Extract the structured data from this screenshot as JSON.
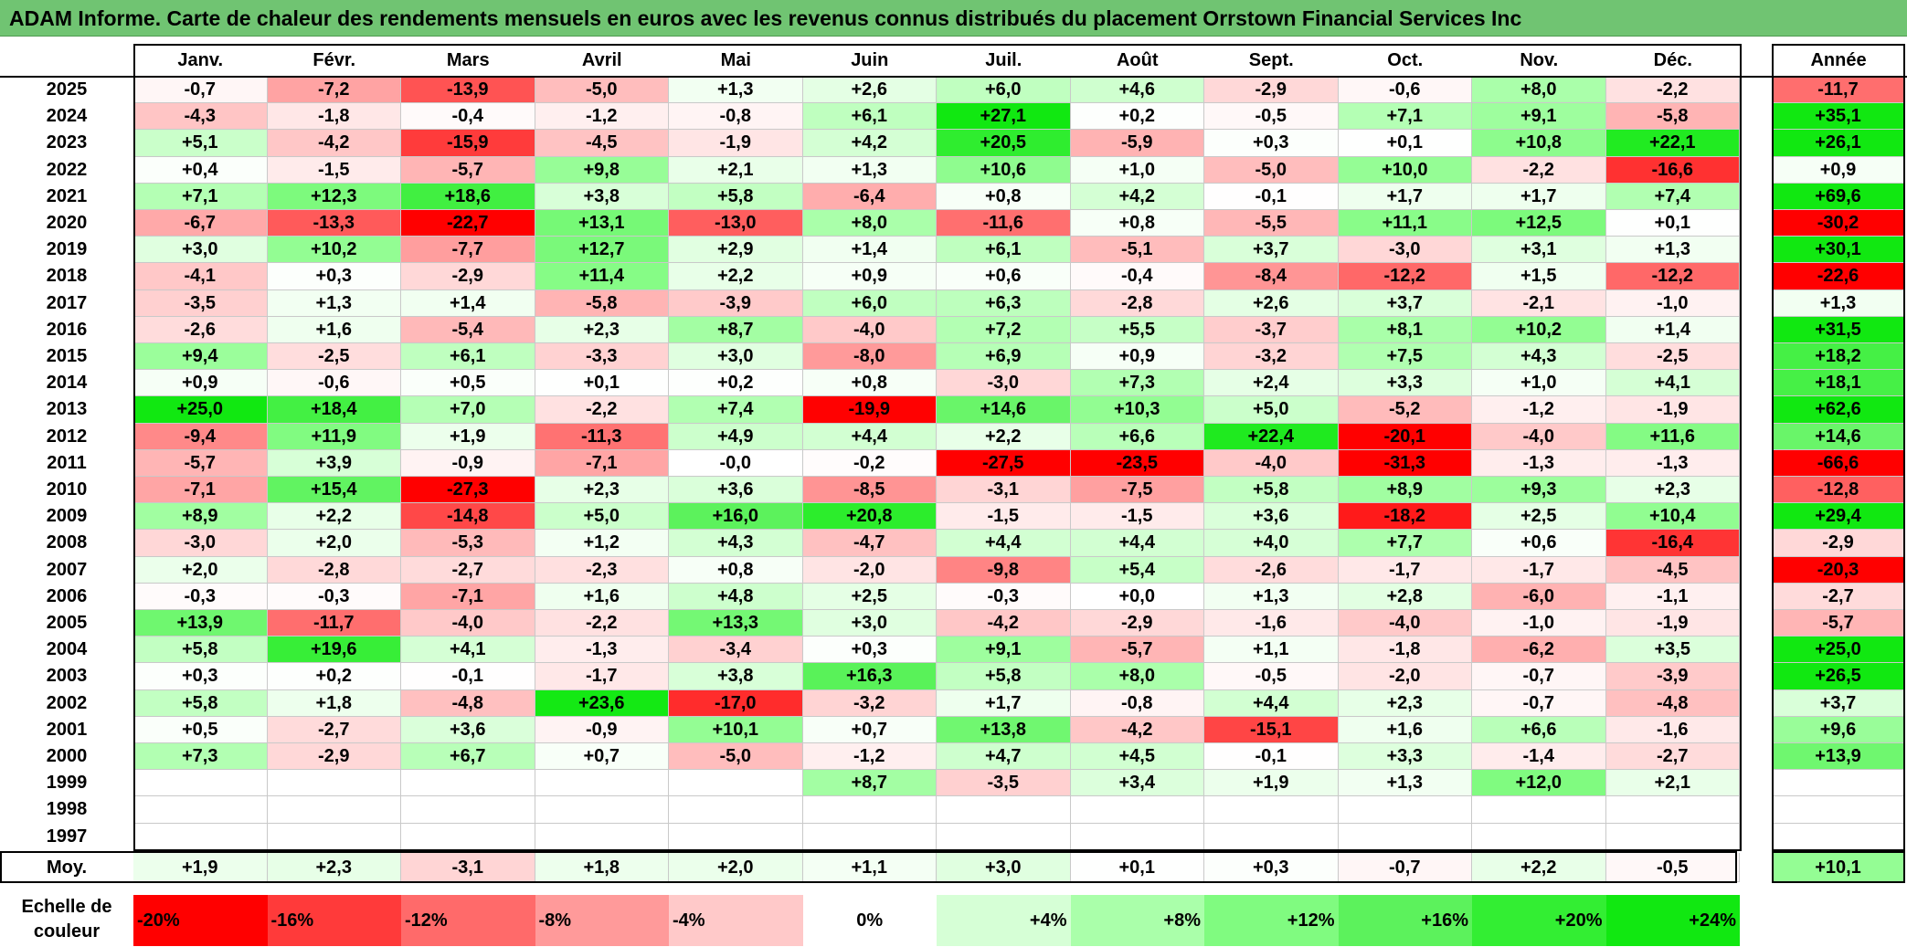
{
  "title": "ADAM Informe. Carte de chaleur des rendements mensuels en euros avec les revenus connus distribués du placement Orrstown Financial Services Inc",
  "chart_data": {
    "type": "heatmap",
    "columns": [
      "Janv.",
      "Févr.",
      "Mars",
      "Avril",
      "Mai",
      "Juin",
      "Juil.",
      "Août",
      "Sept.",
      "Oct.",
      "Nov.",
      "Déc."
    ],
    "annual_label": "Année",
    "average_label": "Moy.",
    "rows": [
      {
        "year": "2025",
        "months": [
          "-0,7",
          "-7,2",
          "-13,9",
          "-5,0",
          "+1,3",
          "+2,6",
          "+6,0",
          "+4,6",
          "-2,9",
          "-0,6",
          "+8,0",
          "-2,2"
        ],
        "annual": "-11,7"
      },
      {
        "year": "2024",
        "months": [
          "-4,3",
          "-1,8",
          "-0,4",
          "-1,2",
          "-0,8",
          "+6,1",
          "+27,1",
          "+0,2",
          "-0,5",
          "+7,1",
          "+9,1",
          "-5,8"
        ],
        "annual": "+35,1"
      },
      {
        "year": "2023",
        "months": [
          "+5,1",
          "-4,2",
          "-15,9",
          "-4,5",
          "-1,9",
          "+4,2",
          "+20,5",
          "-5,9",
          "+0,3",
          "+0,1",
          "+10,8",
          "+22,1"
        ],
        "annual": "+26,1"
      },
      {
        "year": "2022",
        "months": [
          "+0,4",
          "-1,5",
          "-5,7",
          "+9,8",
          "+2,1",
          "+1,3",
          "+10,6",
          "+1,0",
          "-5,0",
          "+10,0",
          "-2,2",
          "-16,6"
        ],
        "annual": "+0,9"
      },
      {
        "year": "2021",
        "months": [
          "+7,1",
          "+12,3",
          "+18,6",
          "+3,8",
          "+5,8",
          "-6,4",
          "+0,8",
          "+4,2",
          "-0,1",
          "+1,7",
          "+1,7",
          "+7,4"
        ],
        "annual": "+69,6"
      },
      {
        "year": "2020",
        "months": [
          "-6,7",
          "-13,3",
          "-22,7",
          "+13,1",
          "-13,0",
          "+8,0",
          "-11,6",
          "+0,8",
          "-5,5",
          "+11,1",
          "+12,5",
          "+0,1"
        ],
        "annual": "-30,2"
      },
      {
        "year": "2019",
        "months": [
          "+3,0",
          "+10,2",
          "-7,7",
          "+12,7",
          "+2,9",
          "+1,4",
          "+6,1",
          "-5,1",
          "+3,7",
          "-3,0",
          "+3,1",
          "+1,3"
        ],
        "annual": "+30,1"
      },
      {
        "year": "2018",
        "months": [
          "-4,1",
          "+0,3",
          "-2,9",
          "+11,4",
          "+2,2",
          "+0,9",
          "+0,6",
          "-0,4",
          "-8,4",
          "-12,2",
          "+1,5",
          "-12,2"
        ],
        "annual": "-22,6"
      },
      {
        "year": "2017",
        "months": [
          "-3,5",
          "+1,3",
          "+1,4",
          "-5,8",
          "-3,9",
          "+6,0",
          "+6,3",
          "-2,8",
          "+2,6",
          "+3,7",
          "-2,1",
          "-1,0"
        ],
        "annual": "+1,3"
      },
      {
        "year": "2016",
        "months": [
          "-2,6",
          "+1,6",
          "-5,4",
          "+2,3",
          "+8,7",
          "-4,0",
          "+7,2",
          "+5,5",
          "-3,7",
          "+8,1",
          "+10,2",
          "+1,4"
        ],
        "annual": "+31,5"
      },
      {
        "year": "2015",
        "months": [
          "+9,4",
          "-2,5",
          "+6,1",
          "-3,3",
          "+3,0",
          "-8,0",
          "+6,9",
          "+0,9",
          "-3,2",
          "+7,5",
          "+4,3",
          "-2,5"
        ],
        "annual": "+18,2"
      },
      {
        "year": "2014",
        "months": [
          "+0,9",
          "-0,6",
          "+0,5",
          "+0,1",
          "+0,2",
          "+0,8",
          "-3,0",
          "+7,3",
          "+2,4",
          "+3,3",
          "+1,0",
          "+4,1"
        ],
        "annual": "+18,1"
      },
      {
        "year": "2013",
        "months": [
          "+25,0",
          "+18,4",
          "+7,0",
          "-2,2",
          "+7,4",
          "-19,9",
          "+14,6",
          "+10,3",
          "+5,0",
          "-5,2",
          "-1,2",
          "-1,9"
        ],
        "annual": "+62,6"
      },
      {
        "year": "2012",
        "months": [
          "-9,4",
          "+11,9",
          "+1,9",
          "-11,3",
          "+4,9",
          "+4,4",
          "+2,2",
          "+6,6",
          "+22,4",
          "-20,1",
          "-4,0",
          "+11,6"
        ],
        "annual": "+14,6"
      },
      {
        "year": "2011",
        "months": [
          "-5,7",
          "+3,9",
          "-0,9",
          "-7,1",
          "-0,0",
          "-0,2",
          "-27,5",
          "-23,5",
          "-4,0",
          "-31,3",
          "-1,3",
          "-1,3"
        ],
        "annual": "-66,6"
      },
      {
        "year": "2010",
        "months": [
          "-7,1",
          "+15,4",
          "-27,3",
          "+2,3",
          "+3,6",
          "-8,5",
          "-3,1",
          "-7,5",
          "+5,8",
          "+8,9",
          "+9,3",
          "+2,3"
        ],
        "annual": "-12,8"
      },
      {
        "year": "2009",
        "months": [
          "+8,9",
          "+2,2",
          "-14,8",
          "+5,0",
          "+16,0",
          "+20,8",
          "-1,5",
          "-1,5",
          "+3,6",
          "-18,2",
          "+2,5",
          "+10,4"
        ],
        "annual": "+29,4"
      },
      {
        "year": "2008",
        "months": [
          "-3,0",
          "+2,0",
          "-5,3",
          "+1,2",
          "+4,3",
          "-4,7",
          "+4,4",
          "+4,4",
          "+4,0",
          "+7,7",
          "+0,6",
          "-16,4"
        ],
        "annual": "-2,9"
      },
      {
        "year": "2007",
        "months": [
          "+2,0",
          "-2,8",
          "-2,7",
          "-2,3",
          "+0,8",
          "-2,0",
          "-9,8",
          "+5,4",
          "-2,6",
          "-1,7",
          "-1,7",
          "-4,5"
        ],
        "annual": "-20,3"
      },
      {
        "year": "2006",
        "months": [
          "-0,3",
          "-0,3",
          "-7,1",
          "+1,6",
          "+4,8",
          "+2,5",
          "-0,3",
          "+0,0",
          "+1,3",
          "+2,8",
          "-6,0",
          "-1,1"
        ],
        "annual": "-2,7"
      },
      {
        "year": "2005",
        "months": [
          "+13,9",
          "-11,7",
          "-4,0",
          "-2,2",
          "+13,3",
          "+3,0",
          "-4,2",
          "-2,9",
          "-1,6",
          "-4,0",
          "-1,0",
          "-1,9"
        ],
        "annual": "-5,7"
      },
      {
        "year": "2004",
        "months": [
          "+5,8",
          "+19,6",
          "+4,1",
          "-1,3",
          "-3,4",
          "+0,3",
          "+9,1",
          "-5,7",
          "+1,1",
          "-1,8",
          "-6,2",
          "+3,5"
        ],
        "annual": "+25,0"
      },
      {
        "year": "2003",
        "months": [
          "+0,3",
          "+0,2",
          "-0,1",
          "-1,7",
          "+3,8",
          "+16,3",
          "+5,8",
          "+8,0",
          "-0,5",
          "-2,0",
          "-0,7",
          "-3,9"
        ],
        "annual": "+26,5"
      },
      {
        "year": "2002",
        "months": [
          "+5,8",
          "+1,8",
          "-4,8",
          "+23,6",
          "-17,0",
          "-3,2",
          "+1,7",
          "-0,8",
          "+4,4",
          "+2,3",
          "-0,7",
          "-4,8"
        ],
        "annual": "+3,7"
      },
      {
        "year": "2001",
        "months": [
          "+0,5",
          "-2,7",
          "+3,6",
          "-0,9",
          "+10,1",
          "+0,7",
          "+13,8",
          "-4,2",
          "-15,1",
          "+1,6",
          "+6,6",
          "-1,6"
        ],
        "annual": "+9,6"
      },
      {
        "year": "2000",
        "months": [
          "+7,3",
          "-2,9",
          "+6,7",
          "+0,7",
          "-5,0",
          "-1,2",
          "+4,7",
          "+4,5",
          "-0,1",
          "+3,3",
          "-1,4",
          "-2,7"
        ],
        "annual": "+13,9"
      },
      {
        "year": "1999",
        "months": [
          "",
          "",
          "",
          "",
          "",
          "+8,7",
          "-3,5",
          "+3,4",
          "+1,9",
          "+1,3",
          "+12,0",
          "+2,1"
        ],
        "annual": ""
      },
      {
        "year": "1998",
        "months": [
          "",
          "",
          "",
          "",
          "",
          "",
          "",
          "",
          "",
          "",
          "",
          ""
        ],
        "annual": ""
      },
      {
        "year": "1997",
        "months": [
          "",
          "",
          "",
          "",
          "",
          "",
          "",
          "",
          "",
          "",
          "",
          ""
        ],
        "annual": ""
      }
    ],
    "average": {
      "months": [
        "+1,9",
        "+2,3",
        "-3,1",
        "+1,8",
        "+2,0",
        "+1,1",
        "+3,0",
        "+0,1",
        "+0,3",
        "-0,7",
        "+2,2",
        "-0,5"
      ],
      "annual": "+10,1"
    },
    "color_scale": {
      "label": "Echelle de couleur",
      "steps": [
        {
          "label": "-20%",
          "value": -20,
          "color": "#ff0000"
        },
        {
          "label": "-16%",
          "value": -16,
          "color": "#ff3a3a"
        },
        {
          "label": "-12%",
          "value": -12,
          "color": "#ff6a6a"
        },
        {
          "label": "-8%",
          "value": -8,
          "color": "#ff9a9a"
        },
        {
          "label": "-4%",
          "value": -4,
          "color": "#ffc9c9"
        },
        {
          "label": "0%",
          "value": 0,
          "color": "#ffffff"
        },
        {
          "label": "+4%",
          "value": 4,
          "color": "#d6ffd6"
        },
        {
          "label": "+8%",
          "value": 8,
          "color": "#aaffaa"
        },
        {
          "label": "+12%",
          "value": 12,
          "color": "#80fb80"
        },
        {
          "label": "+16%",
          "value": 16,
          "color": "#5cf25c"
        },
        {
          "label": "+20%",
          "value": 20,
          "color": "#33ee33"
        },
        {
          "label": "+24%",
          "value": 24,
          "color": "#11e811"
        }
      ]
    }
  }
}
